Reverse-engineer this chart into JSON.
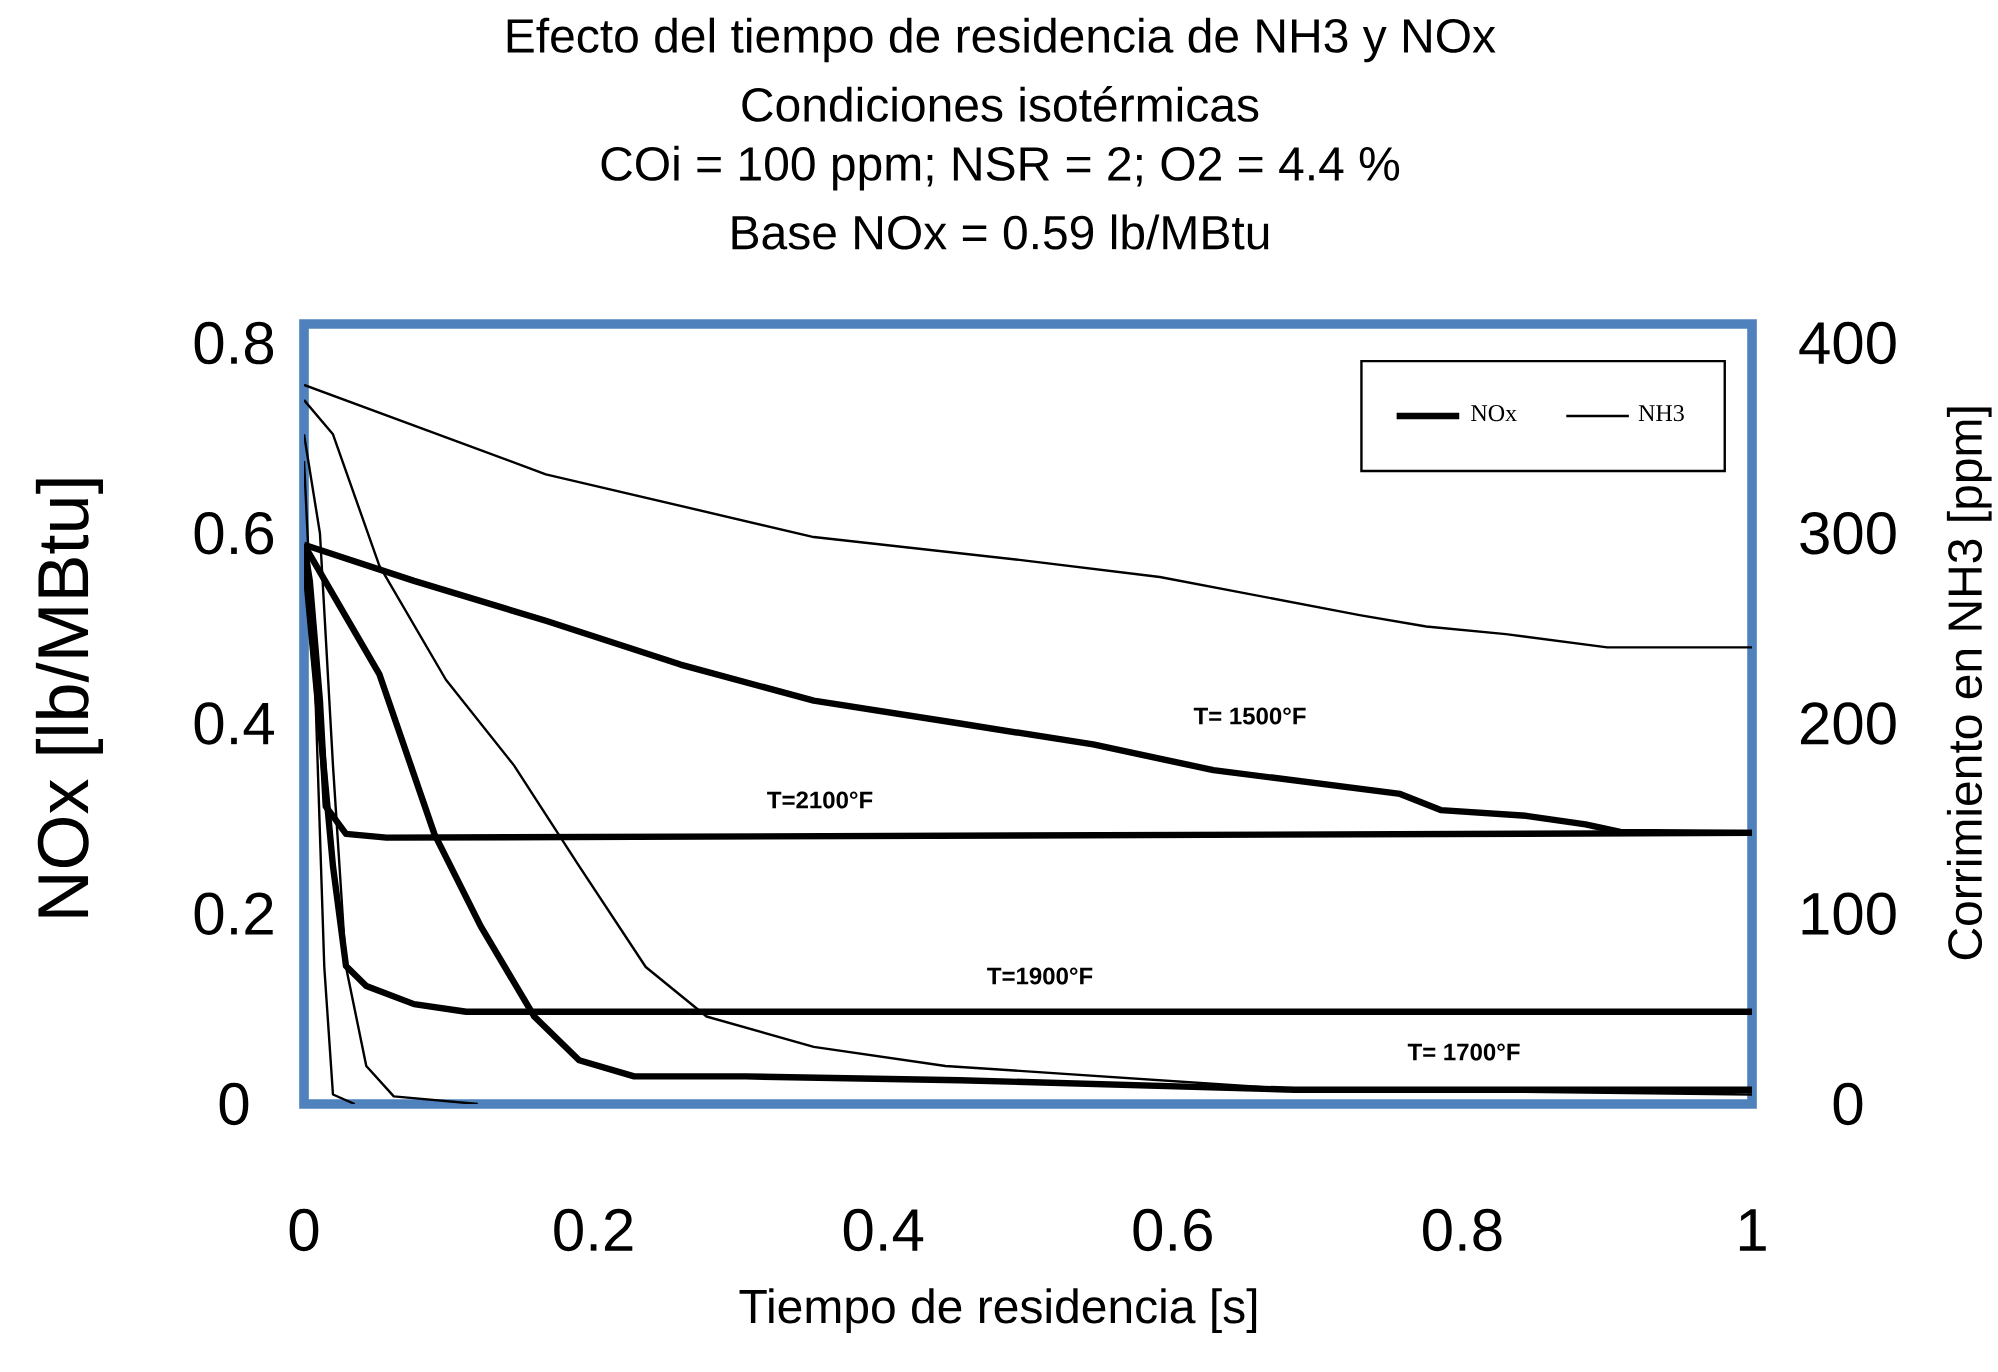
{
  "chart_data": {
    "type": "line",
    "title": "Efecto del tiempo de residencia de NH3 y NOx",
    "subtitle": "Condiciones isotérmicas",
    "xlabel": "Tiempo de residencia [s]",
    "ylabel": "NOx [lb/MBtu]",
    "y2label": "Corrimiento en NH3 [ppm]",
    "xlim": [
      0,
      1
    ],
    "xticks": [
      0,
      0.2,
      0.4,
      0.6,
      0.8,
      1
    ],
    "ylim": [
      0,
      0.82
    ],
    "yticks": [
      0,
      0.2,
      0.4,
      0.6,
      0.8
    ],
    "y2lim": [
      0,
      410
    ],
    "y2ticks": [
      0,
      100,
      200,
      300,
      400
    ],
    "legend": "top right",
    "grid": false,
    "annotations": [
      "COi = 100 ppm; NSR = 2; O2 = 4.4 %",
      "Base NOx = 0.59 lb/MBtu",
      "T= 1500°F",
      "T=2100°F",
      "T=1900°F",
      "T= 1700°F"
    ],
    "series": [
      {
        "name": "NOx",
        "color": "#000000",
        "x": [
          0,
          0.076,
          0.167,
          0.26,
          0.352,
          0.453,
          0.545,
          0.628,
          0.757,
          0.785,
          0.844,
          0.885,
          0.909,
          1
        ],
        "values": [
          0.588,
          0.55,
          0.508,
          0.462,
          0.424,
          0.4,
          0.378,
          0.351,
          0.326,
          0.309,
          0.303,
          0.294,
          0.286,
          0.285
        ]
      },
      {
        "color": "#000000",
        "x": [
          0,
          0.004,
          0.011,
          0.015,
          0.029,
          0.057,
          1
        ],
        "values": [
          0.588,
          0.55,
          0.424,
          0.313,
          0.284,
          0.28,
          0.285
        ]
      },
      {
        "color": "#000000",
        "x": [
          0,
          0.02,
          0.029,
          0.043,
          0.076,
          0.112,
          1
        ],
        "values": [
          0.578,
          0.25,
          0.145,
          0.124,
          0.105,
          0.097,
          0.097
        ]
      },
      {
        "color": "#000000",
        "x": [
          0,
          0.052,
          0.09,
          0.122,
          0.159,
          0.19,
          0.228,
          0.305,
          0.453,
          0.684,
          1
        ],
        "values": [
          0.588,
          0.452,
          0.284,
          0.187,
          0.092,
          0.046,
          0.029,
          0.029,
          0.025,
          0.015,
          0.015
        ]
      },
      {
        "name": "NH3",
        "color": "#000000",
        "axis": "y2",
        "x": [
          0,
          0.167,
          0.352,
          0.494,
          0.591,
          0.729,
          0.775,
          0.83,
          0.9,
          1
        ],
        "values": [
          378,
          331,
          298,
          286,
          277,
          257,
          251,
          247,
          240,
          240
        ]
      },
      {
        "color": "#000000",
        "axis": "y2",
        "x": [
          0,
          0.02,
          0.052,
          0.098,
          0.145,
          0.19,
          0.236,
          0.278,
          0.352,
          0.443,
          0.68,
          1
        ],
        "values": [
          370,
          352,
          283,
          223,
          178,
          125,
          72,
          46,
          30,
          20,
          8,
          5
        ]
      },
      {
        "color": "#000000",
        "axis": "y2",
        "x": [
          0,
          0.011,
          0.02,
          0.029,
          0.043,
          0.062,
          0.12
        ],
        "values": [
          352,
          300,
          178,
          72,
          20,
          4,
          0
        ]
      },
      {
        "color": "#000000",
        "axis": "y2",
        "x": [
          0,
          0.008,
          0.014,
          0.02,
          0.035
        ],
        "values": [
          338,
          212,
          72,
          5,
          0
        ]
      }
    ]
  }
}
